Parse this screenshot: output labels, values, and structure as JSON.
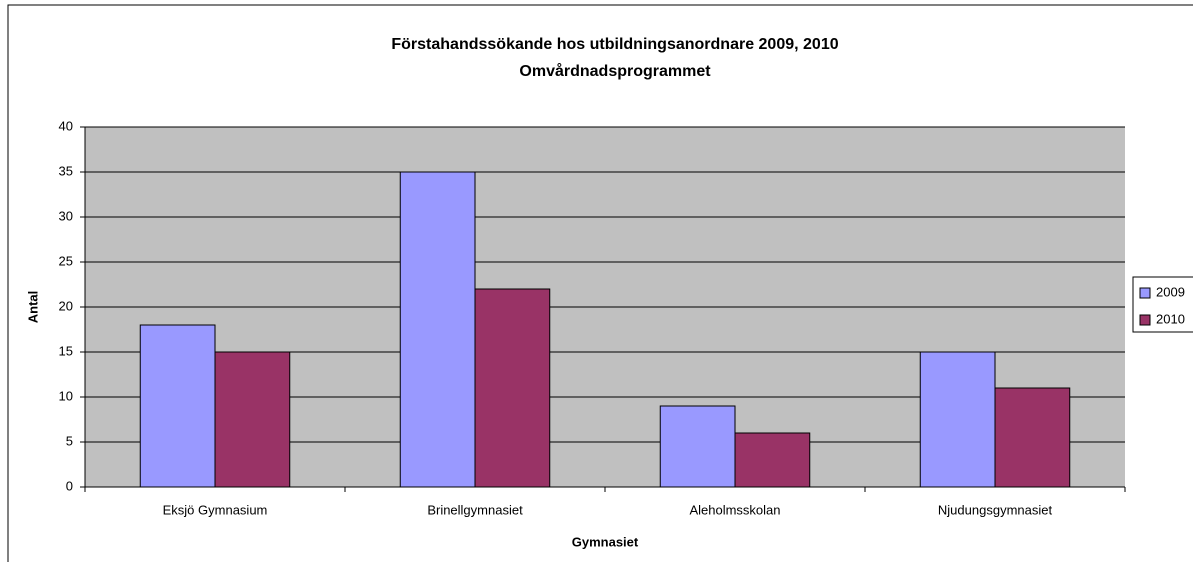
{
  "chart_data": {
    "type": "bar",
    "title": "Förstahandssökande hos utbildningsanordnare 2009, 2010",
    "subtitle": "Omvårdnadsprogrammet",
    "x_label": "Gymnasiet",
    "y_label": "Antal",
    "categories": [
      "Eksjö Gymnasium",
      "Brinellgymnasiet",
      "Aleholmsskolan",
      "Njudungsgymnasiet"
    ],
    "series": [
      {
        "name": "2009",
        "color": "#9999ff",
        "values": [
          18,
          35,
          9,
          15
        ]
      },
      {
        "name": "2010",
        "color": "#993366",
        "values": [
          15,
          22,
          6,
          11
        ]
      }
    ],
    "ylim": [
      0,
      40
    ],
    "yticks": [
      0,
      5,
      10,
      15,
      20,
      25,
      30,
      35,
      40
    ],
    "grid": true,
    "legend": "right"
  }
}
